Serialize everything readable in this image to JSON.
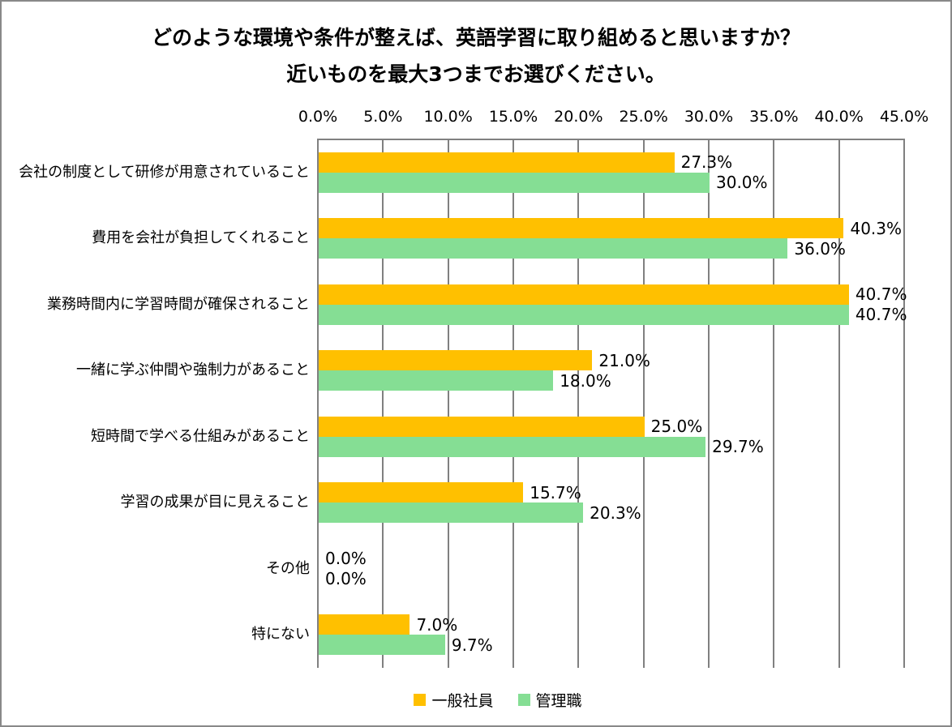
{
  "title": {
    "line1": "どのような環境や条件が整えば、英語学習に取り組めると思いますか？",
    "line2": "近いものを最大3つまでお選びください。"
  },
  "legend": {
    "series1_label": "一般社員",
    "series2_label": "管理職"
  },
  "colors": {
    "series1": "#FFC000",
    "series2": "#85DE94",
    "gridline": "#808080",
    "frame_border": "#898989"
  },
  "chart_data": {
    "type": "bar",
    "orientation": "horizontal",
    "title": "どのような環境や条件が整えば、英語学習に取り組めると思いますか？ 近いものを最大3つまでお選びください。",
    "categories": [
      "会社の制度として研修が用意されていること",
      "費用を会社が負担してくれること",
      "業務時間内に学習時間が確保されること",
      "一緒に学ぶ仲間や強制力があること",
      "短時間で学べる仕組みがあること",
      "学習の成果が目に見えること",
      "その他",
      "特にない"
    ],
    "series": [
      {
        "name": "一般社員",
        "color": "#FFC000",
        "values": [
          27.3,
          40.3,
          40.7,
          21.0,
          25.0,
          15.7,
          0.0,
          7.0
        ]
      },
      {
        "name": "管理職",
        "color": "#85DE94",
        "values": [
          30.0,
          36.0,
          40.7,
          18.0,
          29.7,
          20.3,
          0.0,
          9.7
        ]
      }
    ],
    "xlim": [
      0,
      45
    ],
    "x_tick_step": 5,
    "x_ticks": [
      "0.0%",
      "5.0%",
      "10.0%",
      "15.0%",
      "20.0%",
      "25.0%",
      "30.0%",
      "35.0%",
      "40.0%",
      "45.0%"
    ],
    "value_label_format": "0.0%",
    "grid": true,
    "axis_position": "top",
    "legend_position": "bottom"
  }
}
